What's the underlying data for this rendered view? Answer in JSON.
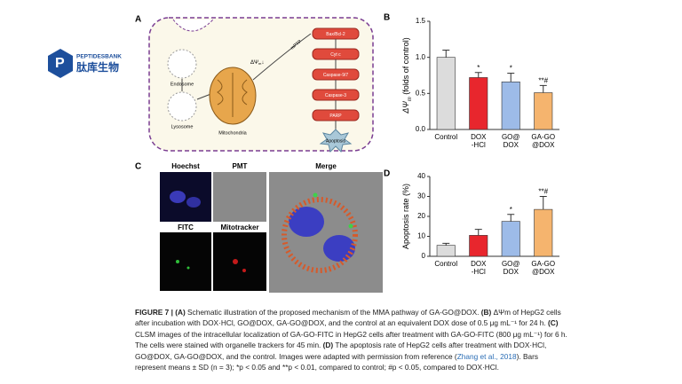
{
  "logo": {
    "name": "PEPTIDESBANK",
    "name_cn": "肽库生物"
  },
  "panel_a": {
    "letter": "A",
    "labels": {
      "endosome": "Endosome",
      "lysosome": "Lysosome",
      "mitochondria": "Mitochondria",
      "delta": "ΔΨ",
      "delta_sub": "m",
      "delta_arrow": "↓",
      "mptp": "mPTP"
    },
    "pathway": [
      "Bax/Bcl-2",
      "Cyt c",
      "Caspase-9/7",
      "Caspase-3",
      "PARP"
    ],
    "apoptosis": "Apoptosis"
  },
  "panel_c": {
    "letter": "C",
    "labels": [
      "Hoechst",
      "PMT",
      "FITC",
      "Mitotracker"
    ],
    "merge": "Merge"
  },
  "chart_data": [
    {
      "type": "bar",
      "letter": "B",
      "ylabel": [
        "ΔΨ",
        "m",
        " (folds of control)"
      ],
      "categories": [
        [
          "Control"
        ],
        [
          "DOX",
          "-HCl"
        ],
        [
          "GO@",
          "DOX"
        ],
        [
          "GA-GO",
          "@DOX"
        ]
      ],
      "values": [
        1.0,
        0.72,
        0.66,
        0.51
      ],
      "errors": [
        0.1,
        0.07,
        0.12,
        0.1
      ],
      "annotations": [
        null,
        "*",
        "*",
        "**#"
      ],
      "colors": [
        "#dcdcdc",
        "#e8262d",
        "#9dbbe8",
        "#f5b46e"
      ],
      "ylim": [
        0,
        1.5
      ],
      "yticks": [
        {
          "value": 0,
          "label": "0.0"
        },
        {
          "value": 0.5,
          "label": "0.5"
        },
        {
          "value": 1,
          "label": "1.0"
        },
        {
          "value": 1.5,
          "label": "1.5"
        }
      ]
    },
    {
      "type": "bar",
      "letter": "D",
      "ylabel": [
        "Apoptosis rate (%)"
      ],
      "categories": [
        [
          "Control"
        ],
        [
          "DOX",
          "-HCl"
        ],
        [
          "GO@",
          "DOX"
        ],
        [
          "GA-GO",
          "@DOX"
        ]
      ],
      "values": [
        5.5,
        10.5,
        17.5,
        23.5
      ],
      "errors": [
        1,
        3,
        3.5,
        6.5
      ],
      "annotations": [
        null,
        null,
        "*",
        "**#"
      ],
      "colors": [
        "#dcdcdc",
        "#e8262d",
        "#9dbbe8",
        "#f5b46e"
      ],
      "ylim": [
        0,
        40
      ],
      "yticks": [
        0,
        10,
        20,
        30,
        40
      ]
    }
  ],
  "caption": [
    {
      "text": "FIGURE 7 | (A)",
      "style": "b"
    },
    {
      "text": " Schematic illustration of the proposed mechanism of the MMA pathway of GA-GO@DOX. ",
      "style": "n"
    },
    {
      "text": "(B)",
      "style": "b"
    },
    {
      "text": " ΔΨm of HepG2 cells after incubation with DOX·HCl, GO@DOX, GA-GO@DOX, and the control at an equivalent DOX dose of 0.5 μg mL⁻¹ for 24 h. ",
      "style": "n"
    },
    {
      "text": "(C)",
      "style": "b"
    },
    {
      "text": " CLSM images of the intracellular localization of GA-GO-FITC in HepG2 cells after treatment with GA-GO-FITC (800 μg mL⁻¹) for 6 h. The cells were stained with organelle trackers for 45 min. ",
      "style": "n"
    },
    {
      "text": "(D)",
      "style": "b"
    },
    {
      "text": " The apoptosis rate of HepG2 cells after treatment with DOX·HCl, GO@DOX, GA-GO@DOX, and the control. Images were adapted with permission from reference (",
      "style": "n"
    },
    {
      "text": "Zhang et al., 2018",
      "style": "link"
    },
    {
      "text": "). Bars represent means ± SD (n = 3); *p < 0.05 and **p < 0.01, compared to control; #p < 0.05, compared to DOX·HCl.",
      "style": "n"
    }
  ]
}
